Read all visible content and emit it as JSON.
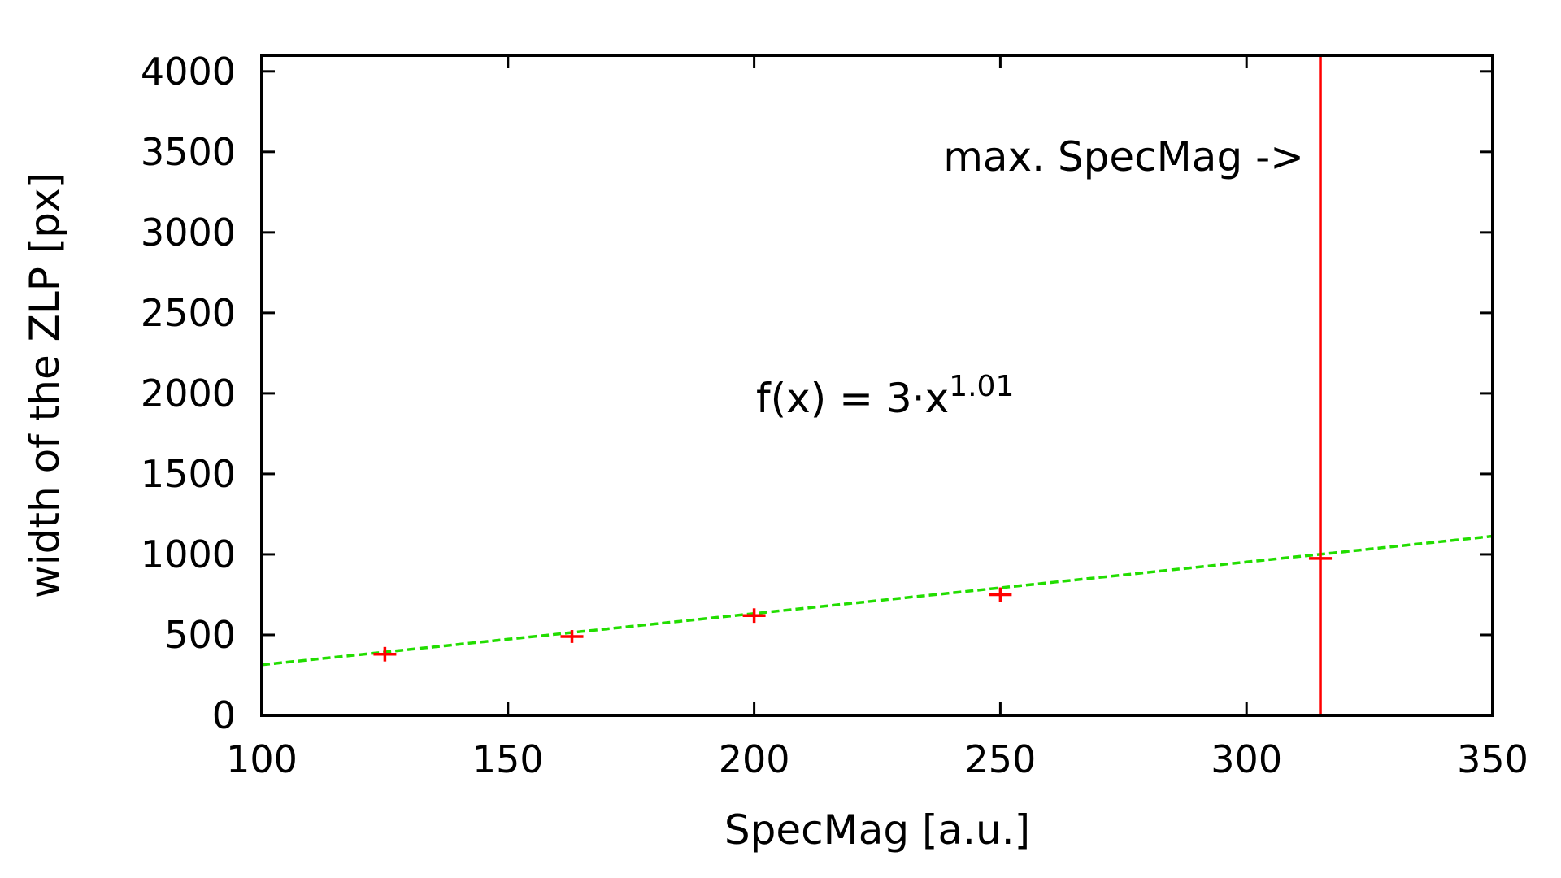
{
  "chart_data": {
    "type": "scatter",
    "xlabel": "SpecMag [a.u.]",
    "ylabel": "width of the ZLP [px]",
    "xlim": [
      100,
      350
    ],
    "ylim": [
      0,
      4100
    ],
    "x_ticks": [
      "100",
      "150",
      "200",
      "250",
      "300",
      "350"
    ],
    "y_ticks": [
      "0",
      "500",
      "1000",
      "1500",
      "2000",
      "2500",
      "3000",
      "3500",
      "4000"
    ],
    "grid": false,
    "legend": "none",
    "series": [
      {
        "marker": "plus",
        "color": "#ff0000",
        "x": [
          125,
          163,
          200,
          250,
          315
        ],
        "y": [
          380,
          490,
          620,
          750,
          975
        ],
        "y_err_half": [
          45,
          40,
          45,
          45,
          10
        ]
      }
    ],
    "fit": {
      "color": "#22dd00",
      "style": "dashed",
      "a": 3,
      "b": 1.01
    },
    "vertical_line": {
      "x": 315,
      "color": "#ff0000"
    },
    "annotations": {
      "max_label": "max. SpecMag ->",
      "fit_prefix": "f(x) = 3·x",
      "fit_exponent": "1.01"
    }
  }
}
